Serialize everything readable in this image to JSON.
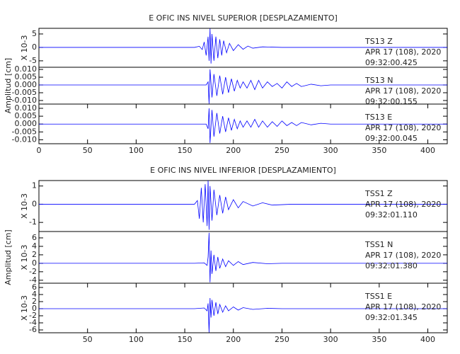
{
  "chart_data": [
    {
      "type": "line",
      "title": "E OFIC INS NIVEL SUPERIOR [DESPLAZAMIENTO]",
      "scale_label": "X 10-3",
      "station": "TS13   Z",
      "date": "APR 17 (108), 2020",
      "time": "09:32:00.425",
      "color": "#0000ff",
      "xlim": [
        0,
        420
      ],
      "ylim": [
        -7.4,
        7.1
      ],
      "yticks": [
        5,
        0,
        -5
      ],
      "x": [
        0,
        100,
        160,
        165,
        168,
        170,
        172,
        174,
        175,
        176,
        177,
        178,
        180,
        182,
        184,
        186,
        188,
        190,
        193,
        196,
        200,
        205,
        210,
        215,
        220,
        230,
        250,
        300,
        420
      ],
      "values": [
        0,
        0,
        0,
        0.4,
        -0.8,
        2,
        -3,
        4,
        -5,
        7,
        -6,
        5,
        -5,
        4,
        -4,
        3,
        -3,
        2.5,
        -2,
        1.5,
        -1.2,
        1,
        -0.7,
        0.5,
        -0.3,
        0.2,
        0,
        0,
        0
      ]
    },
    {
      "type": "line",
      "ylabel": "Amplitud [cm]",
      "station": "TS13   N",
      "date": "APR 17 (108), 2020",
      "time": "09:32:00.155",
      "color": "#0000ff",
      "xlim": [
        0,
        420
      ],
      "ylim": [
        -0.0123,
        0.0114
      ],
      "yticks": [
        {
          "value": 0.01,
          "label": "0.010"
        },
        {
          "value": 0.005,
          "label": "0.005"
        },
        {
          "value": 0,
          "label": "0.000"
        },
        {
          "value": -0.005,
          "label": "-0.005"
        },
        {
          "value": -0.01,
          "label": "-0.010"
        }
      ],
      "x": [
        0,
        150,
        172,
        174,
        175,
        176,
        178,
        180,
        183,
        186,
        189,
        192,
        195,
        198,
        201,
        204,
        207,
        210,
        214,
        218,
        222,
        226,
        230,
        235,
        240,
        245,
        250,
        255,
        260,
        265,
        270,
        280,
        290,
        300,
        420
      ],
      "values": [
        0,
        0,
        0,
        0.002,
        -0.012,
        0.01,
        -0.008,
        0.007,
        -0.007,
        0.006,
        -0.006,
        0.005,
        -0.005,
        0.004,
        -0.004,
        0.003,
        -0.002,
        0.002,
        -0.002,
        0.003,
        -0.003,
        0.003,
        -0.002,
        0.002,
        -0.001,
        0.001,
        -0.002,
        0.002,
        -0.001,
        0.001,
        -0.001,
        0.0005,
        -0.0005,
        0,
        0
      ]
    },
    {
      "type": "line",
      "station": "TS13   E",
      "date": "APR 17 (108), 2020",
      "time": "09:32:00.045",
      "color": "#0000ff",
      "xlim": [
        0,
        420
      ],
      "ylim": [
        -0.0125,
        0.0127
      ],
      "yticks": [
        {
          "value": 0.01,
          "label": "0.010"
        },
        {
          "value": 0.005,
          "label": "0.005"
        },
        {
          "value": 0,
          "label": "0.000"
        },
        {
          "value": -0.005,
          "label": "-0.005"
        },
        {
          "value": -0.01,
          "label": "-0.010"
        }
      ],
      "xticks": [
        0,
        50,
        100,
        150,
        200,
        250,
        300,
        350,
        400
      ],
      "x": [
        0,
        150,
        172,
        174,
        175,
        176,
        178,
        180,
        183,
        186,
        189,
        192,
        195,
        198,
        201,
        204,
        207,
        210,
        214,
        218,
        222,
        226,
        230,
        235,
        240,
        245,
        250,
        255,
        260,
        265,
        270,
        280,
        290,
        300,
        420
      ],
      "values": [
        0,
        0,
        0,
        -0.003,
        0.01,
        -0.012,
        0.009,
        -0.008,
        0.007,
        -0.006,
        0.005,
        -0.005,
        0.004,
        -0.004,
        0.003,
        -0.003,
        0.002,
        -0.002,
        0.002,
        -0.002,
        0.003,
        -0.002,
        0.002,
        -0.002,
        0.0015,
        -0.0015,
        0.002,
        -0.001,
        0.001,
        -0.001,
        0.001,
        -0.0005,
        0.0005,
        0,
        0
      ]
    },
    {
      "type": "line",
      "title": "E OFIC INS NIVEL INFERIOR [DESPLAZAMIENTO]",
      "scale_label": "X 10-3",
      "station": "TSS1   Z",
      "date": "APR 17 (108), 2020",
      "time": "09:32:01.110",
      "color": "#0000ff",
      "xlim": [
        0,
        420
      ],
      "ylim": [
        -1.5,
        1.3
      ],
      "yticks": [
        1,
        0,
        -1
      ],
      "x": [
        0,
        160,
        163,
        165,
        167,
        169,
        171,
        173,
        174,
        175,
        176,
        178,
        180,
        183,
        186,
        189,
        192,
        195,
        200,
        205,
        210,
        220,
        230,
        240,
        260,
        420
      ],
      "values": [
        0,
        0,
        0.2,
        -0.8,
        0.9,
        -1.0,
        1.1,
        -1.2,
        1.3,
        -1.4,
        1.0,
        -0.9,
        0.8,
        -0.6,
        0.5,
        -0.5,
        0.4,
        -0.3,
        0.25,
        -0.2,
        0.15,
        -0.1,
        0.08,
        -0.05,
        0,
        0
      ]
    },
    {
      "type": "line",
      "ylabel": "Amplitud [cm]",
      "scale_label": "X 10-3",
      "station": "TSS1   N",
      "date": "APR 17 (108), 2020",
      "time": "09:32:01.380",
      "color": "#0000ff",
      "xlim": [
        0,
        420
      ],
      "ylim": [
        -4.7,
        7.5
      ],
      "yticks": [
        6,
        4,
        2,
        0,
        -2,
        -4
      ],
      "x": [
        0,
        160,
        170,
        173,
        174,
        175,
        176,
        177,
        178,
        180,
        182,
        184,
        186,
        189,
        192,
        195,
        200,
        205,
        210,
        220,
        235,
        250,
        420
      ],
      "values": [
        0,
        0,
        0.1,
        -0.5,
        1.5,
        7.2,
        -4.5,
        3,
        -2.5,
        2,
        -1.8,
        1.5,
        -1.2,
        1,
        -0.8,
        0.6,
        -0.5,
        0.4,
        -0.3,
        0.2,
        -0.1,
        0,
        0
      ]
    },
    {
      "type": "line",
      "scale_label": "X 10-3",
      "station": "TSS1   E",
      "date": "APR 17 (108), 2020",
      "time": "09:32:01.345",
      "color": "#0000ff",
      "xlim": [
        0,
        420
      ],
      "ylim": [
        -6.8,
        7.2
      ],
      "yticks": [
        6,
        4,
        2,
        0,
        -2,
        -4,
        -6
      ],
      "xticks": [
        50,
        100,
        150,
        200,
        250,
        300,
        350,
        400
      ],
      "x": [
        0,
        160,
        170,
        173,
        174,
        175,
        176,
        177,
        178,
        180,
        182,
        184,
        186,
        189,
        192,
        195,
        200,
        205,
        210,
        220,
        235,
        250,
        420
      ],
      "values": [
        0,
        0,
        0.2,
        -0.6,
        1.5,
        -6.7,
        3,
        -2.5,
        2.5,
        -2,
        1.8,
        -1.5,
        1.2,
        -1,
        0.8,
        -0.6,
        0.5,
        -0.4,
        0.3,
        -0.2,
        0.1,
        0,
        0
      ]
    }
  ]
}
